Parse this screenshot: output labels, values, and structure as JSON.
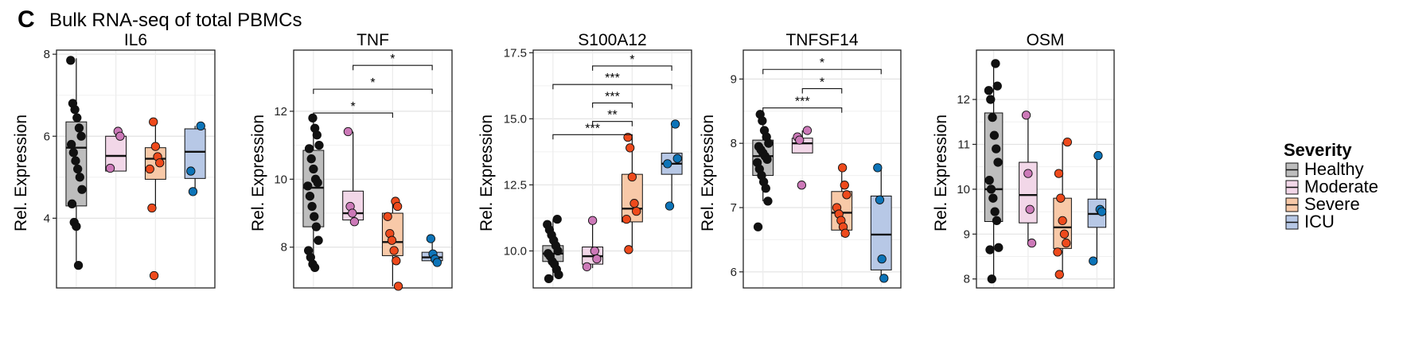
{
  "figure": {
    "panel_letter": "C",
    "title": "Bulk RNA-seq of total PBMCs"
  },
  "legend": {
    "title": "Severity",
    "entries": [
      {
        "label": "Healthy",
        "fill": "#bdbdbd",
        "point": "#111111"
      },
      {
        "label": "Moderate",
        "fill": "#f2d7e8",
        "point": "#cc79b8"
      },
      {
        "label": "Severe",
        "fill": "#f8c9a8",
        "point": "#ee4a1c"
      },
      {
        "label": "ICU",
        "fill": "#b7c8e6",
        "point": "#0d74b8"
      }
    ]
  },
  "chart_data": [
    {
      "type": "box",
      "title": "IL6",
      "ylabel": "Rel. Expression",
      "ylim": [
        2.3,
        8.1
      ],
      "yticks": [
        4,
        6,
        8
      ],
      "categories": [
        "Healthy",
        "Moderate",
        "Severe",
        "ICU"
      ],
      "boxes": [
        {
          "q1": 4.3,
          "median": 5.72,
          "q3": 6.35,
          "whisker_low": 2.85,
          "whisker_high": 7.9,
          "points": [
            7.85,
            6.8,
            6.65,
            6.45,
            6.2,
            6.0,
            5.8,
            5.6,
            5.4,
            5.2,
            5.0,
            4.7,
            4.35,
            3.9,
            3.8,
            2.85
          ]
        },
        {
          "q1": 5.15,
          "median": 5.52,
          "q3": 6.0,
          "whisker_low": 5.15,
          "whisker_high": 6.1,
          "points": [
            6.12,
            6.0,
            5.22
          ]
        },
        {
          "q1": 4.95,
          "median": 5.45,
          "q3": 5.72,
          "whisker_low": 4.25,
          "whisker_high": 6.35,
          "points": [
            6.35,
            5.75,
            5.5,
            5.35,
            5.2,
            4.25,
            2.6
          ]
        },
        {
          "q1": 4.97,
          "median": 5.62,
          "q3": 6.18,
          "whisker_low": 4.65,
          "whisker_high": 6.25,
          "points": [
            6.25,
            5.15,
            4.65
          ]
        }
      ],
      "significance": []
    },
    {
      "type": "box",
      "title": "TNF",
      "ylabel": "Rel. Expression",
      "ylim": [
        6.8,
        13.8
      ],
      "yticks": [
        8,
        10,
        12
      ],
      "categories": [
        "Healthy",
        "Moderate",
        "Severe",
        "ICU"
      ],
      "boxes": [
        {
          "q1": 8.6,
          "median": 9.75,
          "q3": 10.85,
          "whisker_low": 7.3,
          "whisker_high": 11.8,
          "points": [
            11.8,
            11.5,
            11.3,
            11.0,
            10.9,
            10.6,
            10.3,
            10.0,
            9.9,
            9.8,
            9.5,
            9.2,
            8.9,
            8.6,
            8.2,
            7.9,
            7.7,
            7.5,
            7.4
          ]
        },
        {
          "q1": 8.8,
          "median": 9.0,
          "q3": 9.65,
          "whisker_low": 8.75,
          "whisker_high": 11.4,
          "points": [
            11.4,
            9.2,
            9.0,
            8.75
          ]
        },
        {
          "q1": 7.75,
          "median": 8.15,
          "q3": 9.0,
          "whisker_low": 6.85,
          "whisker_high": 9.35,
          "points": [
            9.35,
            9.2,
            8.9,
            8.4,
            8.2,
            7.9,
            7.6,
            6.85
          ]
        },
        {
          "q1": 7.6,
          "median": 7.7,
          "q3": 7.85,
          "whisker_low": 7.55,
          "whisker_high": 8.25,
          "points": [
            8.25,
            7.8,
            7.65,
            7.55
          ]
        }
      ],
      "significance": [
        {
          "from": 2,
          "to": 4,
          "y": 13.35,
          "label": "*"
        },
        {
          "from": 1,
          "to": 4,
          "y": 12.65,
          "label": "*"
        },
        {
          "from": 1,
          "to": 3,
          "y": 11.95,
          "label": "*"
        }
      ]
    },
    {
      "type": "box",
      "title": "S100A12",
      "ylabel": "Rel. Expression",
      "ylim": [
        8.6,
        17.6
      ],
      "yticks": [
        10.0,
        12.5,
        15.0,
        17.5
      ],
      "tick_labels": [
        "10.0",
        "12.5",
        "15.0",
        "17.5"
      ],
      "categories": [
        "Healthy",
        "Moderate",
        "Severe",
        "ICU"
      ],
      "boxes": [
        {
          "q1": 9.6,
          "median": 9.9,
          "q3": 10.2,
          "whisker_low": 8.9,
          "whisker_high": 11.2,
          "points": [
            11.2,
            11.0,
            10.8,
            10.6,
            10.4,
            10.2,
            10.0,
            9.9,
            9.8,
            9.6,
            9.5,
            9.3,
            9.1,
            8.95
          ]
        },
        {
          "q1": 9.5,
          "median": 9.8,
          "q3": 10.15,
          "whisker_low": 9.35,
          "whisker_high": 11.15,
          "points": [
            11.15,
            10.0,
            9.7,
            9.4
          ]
        },
        {
          "q1": 11.1,
          "median": 11.6,
          "q3": 12.9,
          "whisker_low": 10.05,
          "whisker_high": 14.3,
          "points": [
            14.3,
            13.9,
            12.8,
            11.8,
            11.5,
            11.2,
            10.05
          ]
        },
        {
          "q1": 12.9,
          "median": 13.3,
          "q3": 13.7,
          "whisker_low": 11.7,
          "whisker_high": 14.8,
          "points": [
            14.8,
            13.5,
            13.3,
            11.7
          ]
        }
      ],
      "significance": [
        {
          "from": 2,
          "to": 4,
          "y": 17.0,
          "label": "*"
        },
        {
          "from": 1,
          "to": 4,
          "y": 16.3,
          "label": "***"
        },
        {
          "from": 2,
          "to": 3,
          "y": 15.6,
          "label": "***"
        },
        {
          "from": 2,
          "to": 3,
          "y": 14.9,
          "label": "**"
        },
        {
          "from": 1,
          "to": 3,
          "y": 14.4,
          "label": "***"
        }
      ],
      "significance_fix": true
    },
    {
      "type": "box",
      "title": "TNFSF14",
      "ylabel": "Rel. Expression",
      "ylim": [
        5.75,
        9.45
      ],
      "yticks": [
        6,
        7,
        8,
        9
      ],
      "categories": [
        "Healthy",
        "Moderate",
        "Severe",
        "ICU"
      ],
      "boxes": [
        {
          "q1": 7.5,
          "median": 7.8,
          "q3": 8.05,
          "whisker_low": 7.1,
          "whisker_high": 8.45,
          "points": [
            8.45,
            8.35,
            8.2,
            8.1,
            8.0,
            7.95,
            7.9,
            7.85,
            7.8,
            7.75,
            7.7,
            7.6,
            7.5,
            7.4,
            7.3,
            7.1,
            6.7
          ]
        },
        {
          "q1": 7.85,
          "median": 8.0,
          "q3": 8.08,
          "whisker_low": 7.85,
          "whisker_high": 8.2,
          "points": [
            8.2,
            8.1,
            8.05,
            7.35
          ]
        },
        {
          "q1": 6.65,
          "median": 6.92,
          "q3": 7.25,
          "whisker_low": 6.55,
          "whisker_high": 7.62,
          "points": [
            7.62,
            7.35,
            7.2,
            7.0,
            6.9,
            6.8,
            6.7,
            6.6
          ]
        },
        {
          "q1": 6.03,
          "median": 6.58,
          "q3": 7.18,
          "whisker_low": 5.9,
          "whisker_high": 7.62,
          "points": [
            7.62,
            7.12,
            6.2,
            5.9
          ]
        }
      ],
      "significance": [
        {
          "from": 1,
          "to": 4,
          "y": 9.15,
          "label": "*"
        },
        {
          "from": 2,
          "to": 3,
          "y": 8.85,
          "label": "*"
        },
        {
          "from": 1,
          "to": 3,
          "y": 8.55,
          "label": "***"
        }
      ]
    },
    {
      "type": "box",
      "title": "OSM",
      "ylabel": "Rel. Expression",
      "ylim": [
        7.8,
        13.1
      ],
      "yticks": [
        8,
        9,
        10,
        11,
        12
      ],
      "categories": [
        "Healthy",
        "Moderate",
        "Severe",
        "ICU"
      ],
      "boxes": [
        {
          "q1": 9.28,
          "median": 10.0,
          "q3": 11.7,
          "whisker_low": 8.0,
          "whisker_high": 12.8,
          "points": [
            12.8,
            12.3,
            12.2,
            12.0,
            11.6,
            11.2,
            10.9,
            10.6,
            10.2,
            10.0,
            9.8,
            9.5,
            9.3,
            8.7,
            8.65,
            8.0
          ]
        },
        {
          "q1": 9.25,
          "median": 9.87,
          "q3": 10.6,
          "whisker_low": 8.8,
          "whisker_high": 11.65,
          "points": [
            11.65,
            10.35,
            9.55,
            8.8
          ]
        },
        {
          "q1": 8.68,
          "median": 9.15,
          "q3": 9.8,
          "whisker_low": 8.1,
          "whisker_high": 11.05,
          "points": [
            11.05,
            10.35,
            9.8,
            9.3,
            9.0,
            8.8,
            8.6,
            8.1
          ]
        },
        {
          "q1": 9.15,
          "median": 9.45,
          "q3": 9.78,
          "whisker_low": 8.4,
          "whisker_high": 10.75,
          "points": [
            10.75,
            9.55,
            9.5,
            8.4
          ]
        }
      ],
      "significance": []
    }
  ]
}
